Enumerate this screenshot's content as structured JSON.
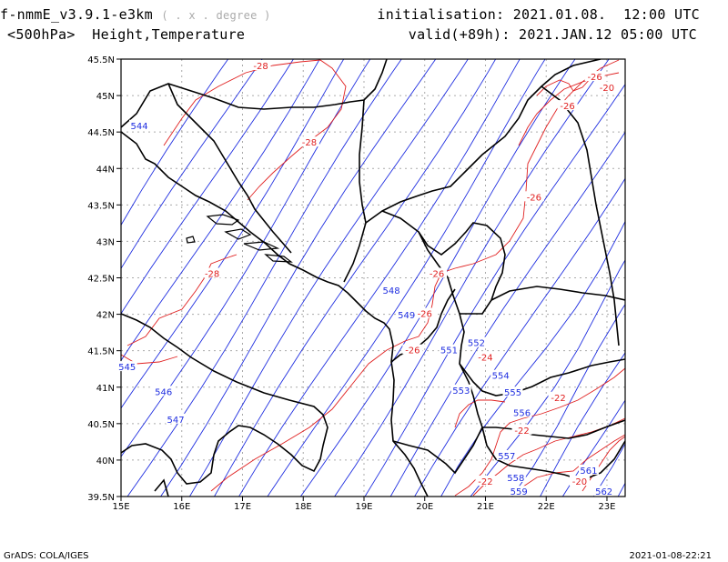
{
  "header": {
    "model": "f-nmmE_v3.9.1-e3km",
    "model_suffix": "( . x . degree )",
    "field": "<500hPa>  Height,Temperature",
    "init": "initialisation: 2021.01.08.  12:00 UTC",
    "valid": "valid(+89h): 2021.JAN.12 05:00 UTC"
  },
  "footer": {
    "left": "GrADS: COLA/IGES",
    "right": "2021-01-08-22:21"
  },
  "colors": {
    "height": "#1f2ee0",
    "temperature": "#e02020",
    "border": "#000000",
    "grid": "#aaaaaa"
  },
  "chart_data": {
    "type": "contour-map",
    "title": "<500hPa> Height,Temperature",
    "xlabel": "",
    "ylabel": "",
    "xlim": [
      15,
      23.3
    ],
    "ylim": [
      39.5,
      45.5
    ],
    "x_ticks": [
      "15E",
      "16E",
      "17E",
      "18E",
      "19E",
      "20E",
      "21E",
      "22E",
      "23E"
    ],
    "y_ticks": [
      "39.5N",
      "40N",
      "40.5N",
      "41N",
      "41.5N",
      "42N",
      "42.5N",
      "43N",
      "43.5N",
      "44N",
      "44.5N",
      "45N",
      "45.5N"
    ],
    "grid": true,
    "height_labels": [
      {
        "text": "544",
        "lon": 15.3,
        "lat": 44.58
      },
      {
        "text": "545",
        "lon": 15.1,
        "lat": 41.27
      },
      {
        "text": "546",
        "lon": 15.7,
        "lat": 40.93
      },
      {
        "text": "547",
        "lon": 15.9,
        "lat": 40.55
      },
      {
        "text": "548",
        "lon": 19.45,
        "lat": 42.32
      },
      {
        "text": "549",
        "lon": 19.7,
        "lat": 41.98
      },
      {
        "text": "551",
        "lon": 20.4,
        "lat": 41.5
      },
      {
        "text": "552",
        "lon": 20.85,
        "lat": 41.6
      },
      {
        "text": "553",
        "lon": 20.6,
        "lat": 40.95
      },
      {
        "text": "554",
        "lon": 21.25,
        "lat": 41.15
      },
      {
        "text": "555",
        "lon": 21.45,
        "lat": 40.92
      },
      {
        "text": "556",
        "lon": 21.6,
        "lat": 40.64
      },
      {
        "text": "557",
        "lon": 21.35,
        "lat": 40.05
      },
      {
        "text": "558",
        "lon": 21.5,
        "lat": 39.75
      },
      {
        "text": "559",
        "lon": 21.55,
        "lat": 39.56
      },
      {
        "text": "561",
        "lon": 22.7,
        "lat": 39.85
      },
      {
        "text": "562",
        "lon": 22.95,
        "lat": 39.56
      }
    ],
    "temperature_labels": [
      {
        "text": "-28",
        "lon": 17.3,
        "lat": 45.4
      },
      {
        "text": "-28",
        "lon": 18.1,
        "lat": 44.35
      },
      {
        "text": "-28",
        "lon": 16.5,
        "lat": 42.55
      },
      {
        "text": "-26",
        "lon": 20.2,
        "lat": 42.55
      },
      {
        "text": "-26",
        "lon": 22.35,
        "lat": 44.85
      },
      {
        "text": "-26",
        "lon": 22.8,
        "lat": 45.25
      },
      {
        "text": "-26",
        "lon": 21.8,
        "lat": 43.6
      },
      {
        "text": "-26",
        "lon": 20.0,
        "lat": 42.0
      },
      {
        "text": "-26",
        "lon": 19.8,
        "lat": 41.5
      },
      {
        "text": "-24",
        "lon": 21.0,
        "lat": 41.4
      },
      {
        "text": "-22",
        "lon": 22.2,
        "lat": 40.85
      },
      {
        "text": "-22",
        "lon": 21.6,
        "lat": 40.4
      },
      {
        "text": "-22",
        "lon": 21.0,
        "lat": 39.7
      },
      {
        "text": "-20",
        "lon": 23.0,
        "lat": 45.1
      },
      {
        "text": "-20",
        "lon": 22.55,
        "lat": 39.7
      }
    ]
  }
}
